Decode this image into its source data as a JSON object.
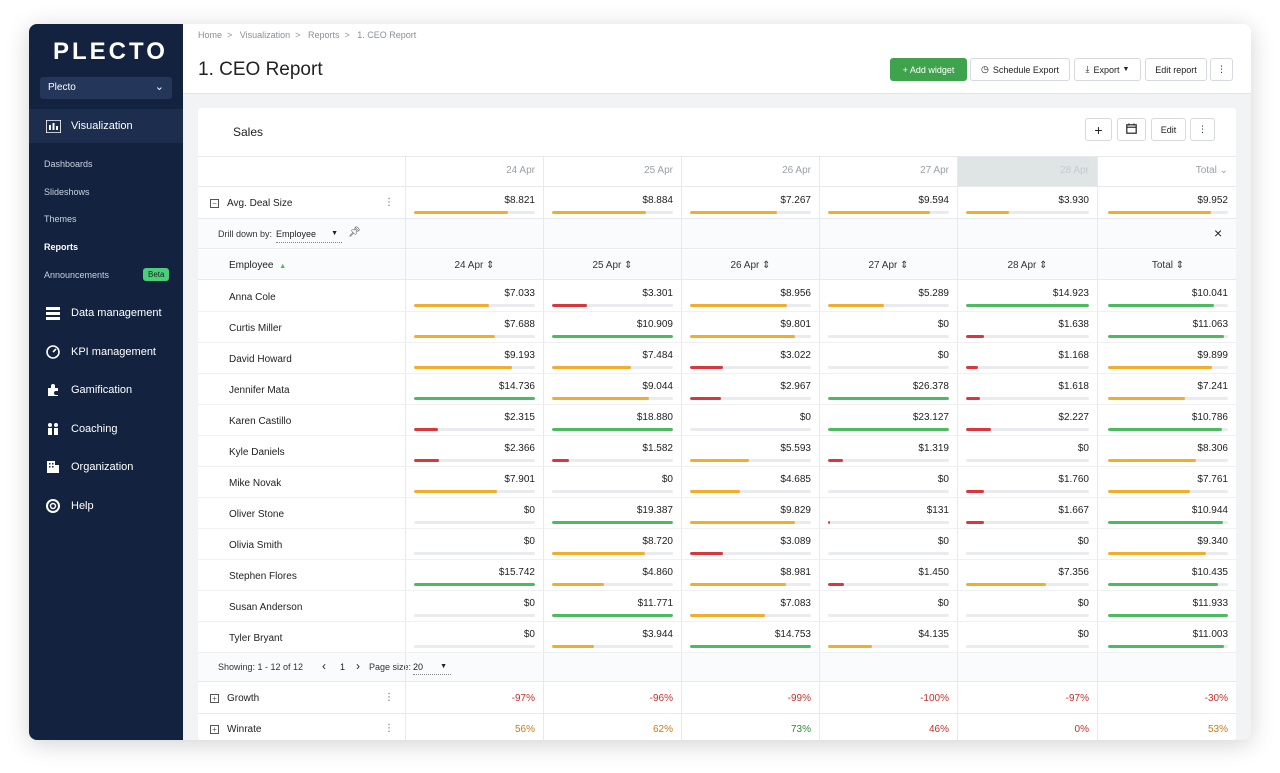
{
  "app": {
    "logo": "PLECTO",
    "workspace": "Plecto"
  },
  "sidebar": {
    "main_items": [
      {
        "label": "Visualization",
        "icon": "chart-icon",
        "active": true
      },
      {
        "label": "Data management",
        "icon": "database-icon"
      },
      {
        "label": "KPI management",
        "icon": "gauge-icon"
      },
      {
        "label": "Gamification",
        "icon": "puzzle-icon"
      },
      {
        "label": "Coaching",
        "icon": "coaching-icon"
      },
      {
        "label": "Organization",
        "icon": "building-icon"
      },
      {
        "label": "Help",
        "icon": "lifebuoy-icon"
      }
    ],
    "sub_items": [
      {
        "label": "Dashboards"
      },
      {
        "label": "Slideshows"
      },
      {
        "label": "Themes"
      },
      {
        "label": "Reports",
        "active": true
      },
      {
        "label": "Announcements",
        "badge": "Beta"
      }
    ]
  },
  "header": {
    "breadcrumb": [
      "Home",
      "Visualization",
      "Reports",
      "1. CEO Report"
    ],
    "title": "1. CEO Report",
    "buttons": {
      "add_widget": "+ Add widget",
      "schedule_export": "Schedule Export",
      "export": "Export",
      "edit_report": "Edit report",
      "more": "⋮"
    }
  },
  "widget": {
    "title": "Sales",
    "buttons": {
      "add": "+",
      "edit": "Edit",
      "more": "⋮"
    },
    "dates": [
      "24 Apr",
      "25 Apr",
      "26 Apr",
      "27 Apr",
      "28 Apr"
    ],
    "total_label": "Total",
    "avg_row": {
      "label": "Avg. Deal Size",
      "values": [
        "$8.821",
        "$8.884",
        "$7.267",
        "$9.594",
        "$3.930",
        "$9.952"
      ],
      "fills": [
        0.78,
        0.78,
        0.72,
        0.84,
        0.35,
        0.86
      ],
      "colors": [
        "#f0ad2e",
        "#f0ad2e",
        "#f0ad2e",
        "#f0ad2e",
        "#f0ad2e",
        "#f0ad2e"
      ]
    },
    "drill": {
      "label": "Drill down by:",
      "value": "Employee",
      "close": "×"
    },
    "employee_header": "Employee",
    "employees": [
      {
        "name": "Anna Cole",
        "values": [
          "$7.033",
          "$3.301",
          "$8.956",
          "$5.289",
          "$14.923",
          "$10.041"
        ],
        "fills": [
          0.62,
          0.29,
          0.8,
          0.46,
          1.0,
          0.88
        ],
        "colors": [
          "#f0ad2e",
          "#d9363e",
          "#f0ad2e",
          "#f0ad2e",
          "#4cba5e",
          "#4cba5e"
        ]
      },
      {
        "name": "Curtis Miller",
        "values": [
          "$7.688",
          "$10.909",
          "$9.801",
          "$0",
          "$1.638",
          "$11.063"
        ],
        "fills": [
          0.67,
          1.0,
          0.87,
          0,
          0.15,
          0.97
        ],
        "colors": [
          "#f0ad2e",
          "#4cba5e",
          "#f0ad2e",
          "#f0ad2e",
          "#d9363e",
          "#4cba5e"
        ]
      },
      {
        "name": "David Howard",
        "values": [
          "$9.193",
          "$7.484",
          "$3.022",
          "$0",
          "$1.168",
          "$9.899"
        ],
        "fills": [
          0.81,
          0.65,
          0.27,
          0,
          0.1,
          0.87
        ],
        "colors": [
          "#f0ad2e",
          "#f0ad2e",
          "#d9363e",
          "#f0ad2e",
          "#d9363e",
          "#f0ad2e"
        ]
      },
      {
        "name": "Jennifer Mata",
        "values": [
          "$14.736",
          "$9.044",
          "$2.967",
          "$26.378",
          "$1.618",
          "$7.241"
        ],
        "fills": [
          1.0,
          0.8,
          0.26,
          1.0,
          0.11,
          0.64
        ],
        "colors": [
          "#4cba5e",
          "#f0ad2e",
          "#d9363e",
          "#4cba5e",
          "#d9363e",
          "#f0ad2e"
        ]
      },
      {
        "name": "Karen Castillo",
        "values": [
          "$2.315",
          "$18.880",
          "$0",
          "$23.127",
          "$2.227",
          "$10.786"
        ],
        "fills": [
          0.2,
          1.0,
          0,
          1.0,
          0.2,
          0.95
        ],
        "colors": [
          "#d9363e",
          "#4cba5e",
          "#f0ad2e",
          "#4cba5e",
          "#d9363e",
          "#4cba5e"
        ]
      },
      {
        "name": "Kyle Daniels",
        "values": [
          "$2.366",
          "$1.582",
          "$5.593",
          "$1.319",
          "$0",
          "$8.306"
        ],
        "fills": [
          0.21,
          0.14,
          0.49,
          0.12,
          0,
          0.73
        ],
        "colors": [
          "#d9363e",
          "#d9363e",
          "#f0ad2e",
          "#d9363e",
          "#f0ad2e",
          "#f0ad2e"
        ]
      },
      {
        "name": "Mike Novak",
        "values": [
          "$7.901",
          "$0",
          "$4.685",
          "$0",
          "$1.760",
          "$7.761"
        ],
        "fills": [
          0.69,
          0,
          0.41,
          0,
          0.15,
          0.68
        ],
        "colors": [
          "#f0ad2e",
          "#f0ad2e",
          "#f0ad2e",
          "#f0ad2e",
          "#d9363e",
          "#f0ad2e"
        ]
      },
      {
        "name": "Oliver Stone",
        "values": [
          "$0",
          "$19.387",
          "$9.829",
          "$131",
          "$1.667",
          "$10.944"
        ],
        "fills": [
          0,
          1.0,
          0.87,
          0.01,
          0.15,
          0.96
        ],
        "colors": [
          "#f0ad2e",
          "#4cba5e",
          "#f0ad2e",
          "#d9363e",
          "#d9363e",
          "#4cba5e"
        ]
      },
      {
        "name": "Olivia Smith",
        "values": [
          "$0",
          "$8.720",
          "$3.089",
          "$0",
          "$0",
          "$9.340"
        ],
        "fills": [
          0,
          0.77,
          0.27,
          0,
          0,
          0.82
        ],
        "colors": [
          "#f0ad2e",
          "#f0ad2e",
          "#d9363e",
          "#f0ad2e",
          "#f0ad2e",
          "#f0ad2e"
        ]
      },
      {
        "name": "Stephen Flores",
        "values": [
          "$15.742",
          "$4.860",
          "$8.981",
          "$1.450",
          "$7.356",
          "$10.435"
        ],
        "fills": [
          1.0,
          0.43,
          0.79,
          0.13,
          0.65,
          0.92
        ],
        "colors": [
          "#4cba5e",
          "#f0ad2e",
          "#f0ad2e",
          "#d9363e",
          "#f0ad2e",
          "#4cba5e"
        ]
      },
      {
        "name": "Susan Anderson",
        "values": [
          "$0",
          "$11.771",
          "$7.083",
          "$0",
          "$0",
          "$11.933"
        ],
        "fills": [
          0,
          1.0,
          0.62,
          0,
          0,
          1.0
        ],
        "colors": [
          "#f0ad2e",
          "#4cba5e",
          "#f0ad2e",
          "#f0ad2e",
          "#f0ad2e",
          "#4cba5e"
        ]
      },
      {
        "name": "Tyler Bryant",
        "values": [
          "$0",
          "$3.944",
          "$14.753",
          "$4.135",
          "$0",
          "$11.003"
        ],
        "fills": [
          0,
          0.35,
          1.0,
          0.36,
          0,
          0.97
        ],
        "colors": [
          "#f0ad2e",
          "#f0ad2e",
          "#4cba5e",
          "#f0ad2e",
          "#f0ad2e",
          "#4cba5e"
        ]
      }
    ],
    "pagination": {
      "showing": "Showing: 1 - 12 of 12",
      "page": "1",
      "page_size_label": "Page size:",
      "page_size": "20",
      "prev": "‹",
      "next": "›"
    },
    "growth_row": {
      "label": "Growth",
      "values": [
        "-97%",
        "-96%",
        "-99%",
        "-100%",
        "-97%",
        "-30%"
      ],
      "colors": [
        "#c4302b",
        "#c4302b",
        "#c4302b",
        "#c4302b",
        "#c4302b",
        "#c4302b"
      ]
    },
    "winrate_row": {
      "label": "Winrate",
      "values": [
        "56%",
        "62%",
        "73%",
        "46%",
        "0%",
        "53%"
      ],
      "colors": [
        "#c77b1a",
        "#c77b1a",
        "#2e8b3e",
        "#c4302b",
        "#c4302b",
        "#c77b1a"
      ]
    }
  }
}
